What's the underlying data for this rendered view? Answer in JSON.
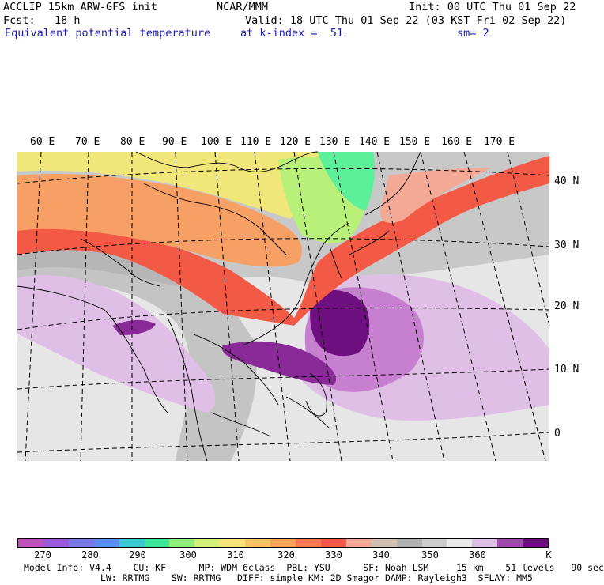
{
  "header": {
    "title": "ACCLIP 15km ARW-GFS init",
    "forecast": "Fcst:   18 h",
    "center": "NCAR/MMM",
    "init": "Init: 00 UTC Thu 01 Sep 22",
    "valid": "Valid: 18 UTC Thu 01 Sep 22 (03 KST Fri 02 Sep 22)",
    "field": "Equivalent potential temperature",
    "level": "at k-index =  51",
    "smoothing": "sm= 2"
  },
  "map": {
    "lon_labels": [
      "60 E",
      "70 E",
      "80 E",
      "90 E",
      "100 E",
      "110 E",
      "120 E",
      "130 E",
      "140 E",
      "150 E",
      "160 E",
      "170 E"
    ],
    "lat_labels": [
      "40 N",
      "30 N",
      "20 N",
      "10 N",
      "0"
    ],
    "colors": {
      "ocean_gray": "#c8c8c8",
      "land_gray": "#a8a8a8",
      "light_gray": "#e6e6e6",
      "lavender": "#e0bfe6",
      "violet": "#c780d0",
      "purple": "#8a2a98",
      "deep_purple": "#6e1080",
      "red": "#f25a46",
      "orange_red": "#f4714e",
      "orange": "#f7a066",
      "yellow": "#f0e67a",
      "lime": "#b8f07a",
      "green": "#5cf09a"
    }
  },
  "colorbar": {
    "labels": [
      "270",
      "280",
      "290",
      "300",
      "310",
      "320",
      "330",
      "340",
      "350",
      "360"
    ],
    "unit": "K",
    "colors": [
      "#c050c0",
      "#9a5ad8",
      "#7a7ae6",
      "#5a8ef0",
      "#3ccad2",
      "#3ee69a",
      "#8ef07a",
      "#d2f07a",
      "#f6e47a",
      "#f8c466",
      "#f8a458",
      "#f67a4e",
      "#f25a46",
      "#f4a896",
      "#d0c0b0",
      "#b0b0b0",
      "#cccccc",
      "#e8e8e8",
      "#e0bfe6",
      "#a04aac",
      "#6e0a80"
    ]
  },
  "footer": {
    "line1": "Model Info: V4.4    CU: KF      MP: WDM 6class  PBL: YSU      SF: Noah LSM     15 km    51 levels   90 sec",
    "line2": "              LW: RRTMG    SW: RRTMG   DIFF: simple KM: 2D Smagor DAMP: Rayleigh3  SFLAY: MM5"
  }
}
